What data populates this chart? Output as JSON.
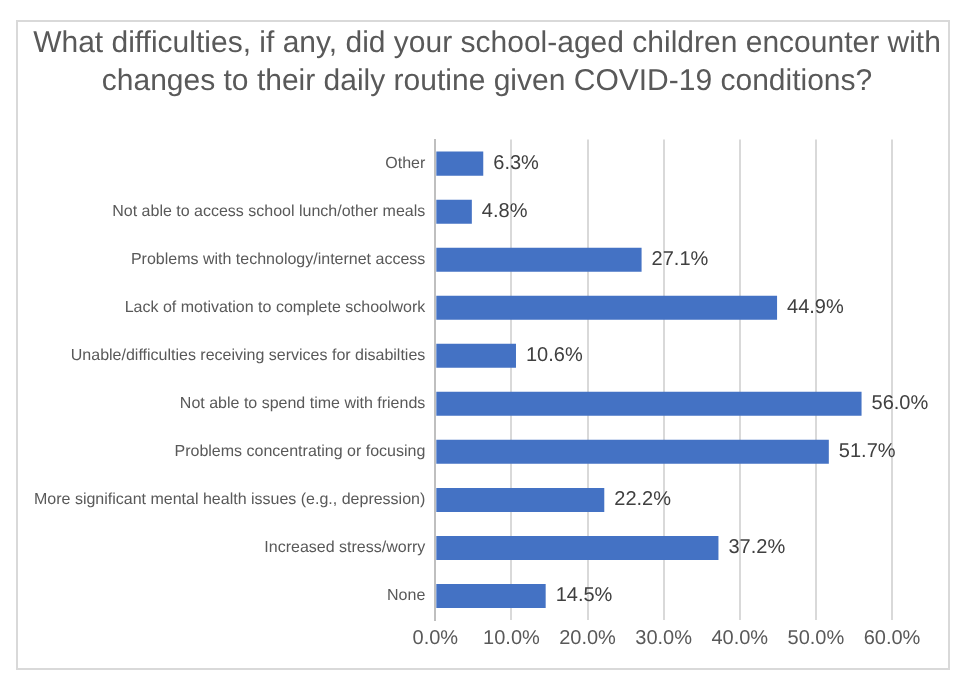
{
  "chart_data": {
    "type": "bar",
    "orientation": "horizontal",
    "title": "What difficulties, if any, did your school-aged children encounter with changes to their daily routine given COVID-19 conditions?",
    "categories": [
      "Other",
      "Not able to access school lunch/other meals",
      "Problems with technology/internet access",
      "Lack of motivation to complete schoolwork",
      "Unable/difficulties receiving services for disabilties",
      "Not able to spend time with friends",
      "Problems concentrating or focusing",
      "More significant mental health issues (e.g., depression)",
      "Increased stress/worry",
      "None"
    ],
    "values": [
      6.3,
      4.8,
      27.1,
      44.9,
      10.6,
      56.0,
      51.7,
      22.2,
      37.2,
      14.5
    ],
    "value_labels": [
      "6.3%",
      "4.8%",
      "27.1%",
      "44.9%",
      "10.6%",
      "56.0%",
      "51.7%",
      "22.2%",
      "37.2%",
      "14.5%"
    ],
    "color": "#4472c4",
    "xlim": [
      0,
      60
    ],
    "xticks": [
      {
        "value": 0,
        "label": "0.0%"
      },
      {
        "value": 10,
        "label": "10.0%"
      },
      {
        "value": 20,
        "label": "20.0%"
      },
      {
        "value": 30,
        "label": "30.0%"
      },
      {
        "value": 40,
        "label": "40.0%"
      },
      {
        "value": 50,
        "label": "50.0%"
      },
      {
        "value": 60,
        "label": "60.0%"
      }
    ],
    "grid": "x",
    "legend": false
  }
}
